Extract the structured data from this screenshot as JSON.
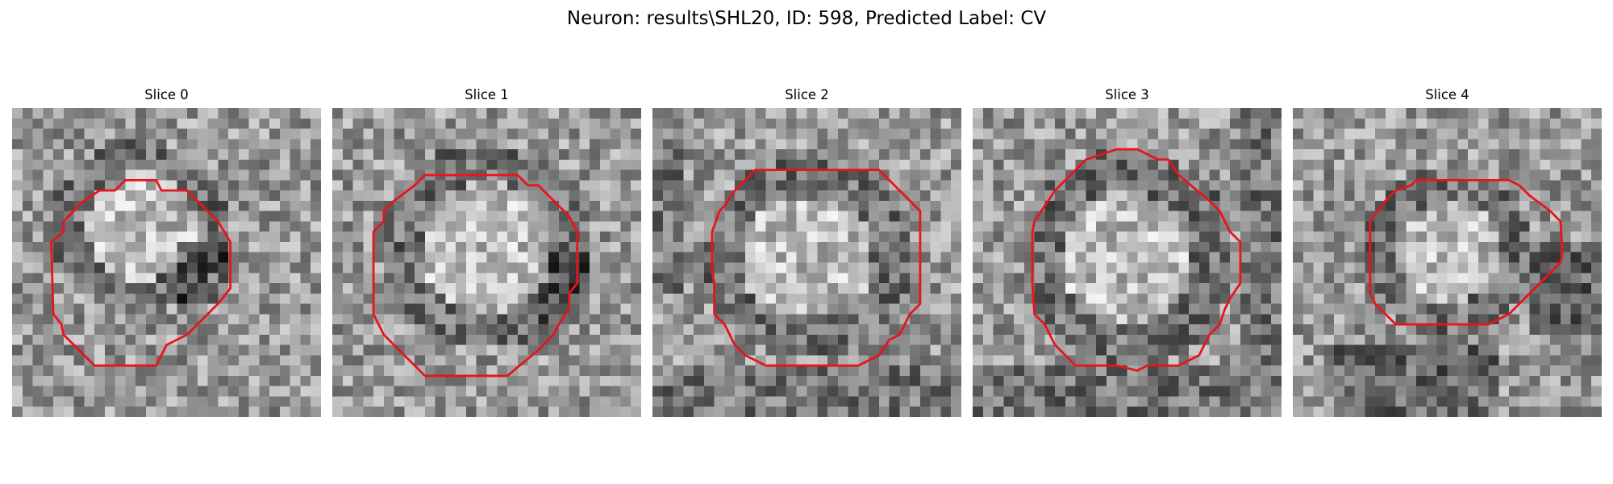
{
  "figure": {
    "title": "Neuron: results\\SHL20, ID: 598, Predicted Label: CV"
  },
  "panels": [
    {
      "title": "Slice 0",
      "outline_type": "lower-left-heavy"
    },
    {
      "title": "Slice 1",
      "outline_type": "large-octagon"
    },
    {
      "title": "Slice 2",
      "outline_type": "octagon"
    },
    {
      "title": "Slice 3",
      "outline_type": "octagon"
    },
    {
      "title": "Slice 4",
      "outline_type": "upper-shift"
    }
  ],
  "colors": {
    "outline": "#e8141c",
    "grayscale_dark": "#1a1a1a",
    "grayscale_light": "#f2f2f2"
  }
}
